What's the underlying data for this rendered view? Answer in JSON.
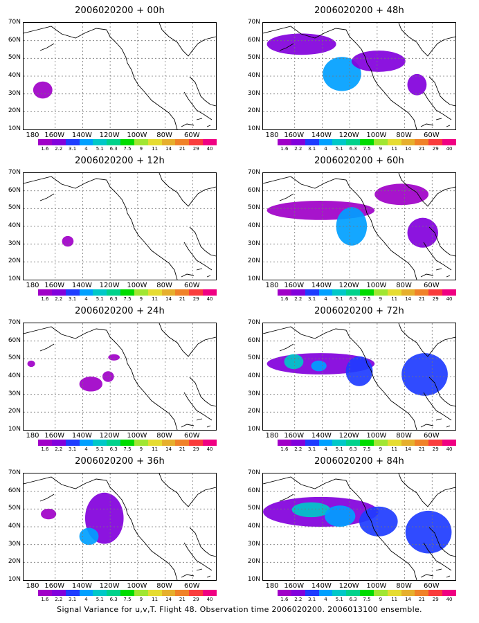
{
  "panels": [
    {
      "title": "2006020200 + 00h",
      "level": 0
    },
    {
      "title": "2006020200 + 48h",
      "level": 3
    },
    {
      "title": "2006020200 + 12h",
      "level": 1
    },
    {
      "title": "2006020200 + 60h",
      "level": 4
    },
    {
      "title": "2006020200 + 24h",
      "level": 1
    },
    {
      "title": "2006020200 + 72h",
      "level": 5
    },
    {
      "title": "2006020200 + 36h",
      "level": 2
    },
    {
      "title": "2006020200 + 84h",
      "level": 6
    }
  ],
  "map": {
    "lat_labels": [
      "70N",
      "60N",
      "50N",
      "40N",
      "30N",
      "20N",
      "10N"
    ],
    "lon_labels": [
      "180",
      "160W",
      "140W",
      "120W",
      "100W",
      "80W",
      "60W"
    ]
  },
  "colorbar": {
    "labels": [
      "1.6",
      "2.2",
      "3.1",
      "4",
      "5.1",
      "6.3",
      "7.5",
      "9",
      "11",
      "14",
      "21",
      "29",
      "40"
    ],
    "colors": [
      "#a000c8",
      "#8200dc",
      "#1e3cff",
      "#00a0ff",
      "#00c8c8",
      "#00d28c",
      "#00dc00",
      "#a0e632",
      "#e6dc32",
      "#e6af2d",
      "#f08228",
      "#fa3c3c",
      "#f00082"
    ]
  },
  "caption": "Signal Variance for u,v,T. Flight 48. Observation time 2006020200. 2006013100 ensemble."
}
